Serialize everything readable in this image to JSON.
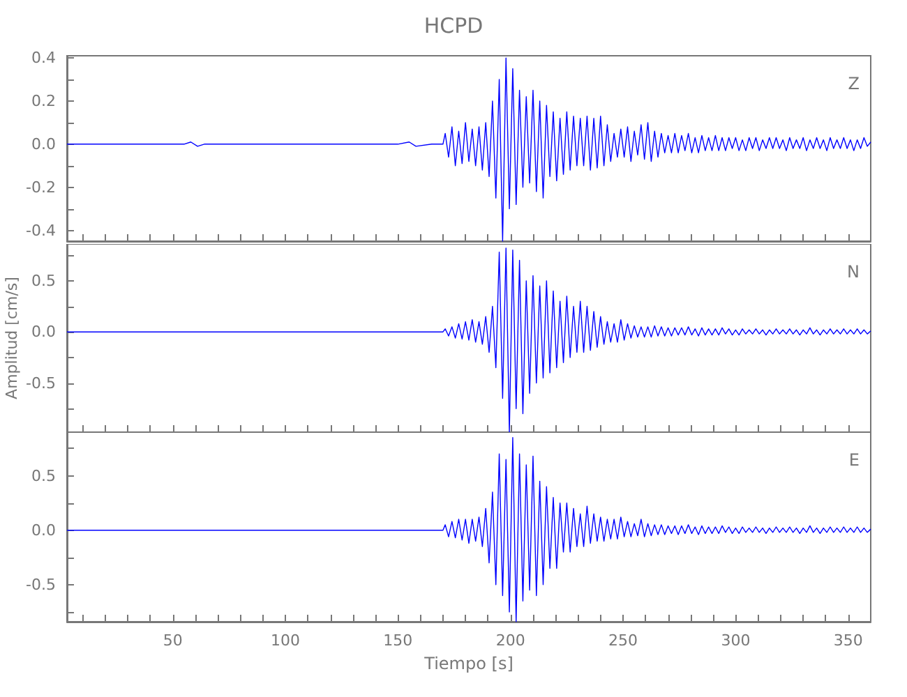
{
  "chart_data": [
    {
      "type": "line",
      "title": "HCPD",
      "annotations": [
        "Z"
      ],
      "color": "#0000ff",
      "tick_labels": "y",
      "xlim": [
        3,
        360
      ],
      "ylim": [
        -0.45,
        0.41
      ],
      "xticks": [
        {
          "value": 10,
          "label": null
        },
        {
          "value": 20,
          "label": null
        },
        {
          "value": 30,
          "label": null
        },
        {
          "value": 40,
          "label": null
        },
        {
          "value": 50,
          "label": null
        },
        {
          "value": 60,
          "label": null
        },
        {
          "value": 70,
          "label": null
        },
        {
          "value": 80,
          "label": null
        },
        {
          "value": 90,
          "label": null
        },
        {
          "value": 100,
          "label": null
        },
        {
          "value": 110,
          "label": null
        },
        {
          "value": 120,
          "label": null
        },
        {
          "value": 130,
          "label": null
        },
        {
          "value": 140,
          "label": null
        },
        {
          "value": 150,
          "label": null
        },
        {
          "value": 160,
          "label": null
        },
        {
          "value": 170,
          "label": null
        },
        {
          "value": 180,
          "label": null
        },
        {
          "value": 190,
          "label": null
        },
        {
          "value": 200,
          "label": null
        },
        {
          "value": 210,
          "label": null
        },
        {
          "value": 220,
          "label": null
        },
        {
          "value": 230,
          "label": null
        },
        {
          "value": 240,
          "label": null
        },
        {
          "value": 250,
          "label": null
        },
        {
          "value": 260,
          "label": null
        },
        {
          "value": 270,
          "label": null
        },
        {
          "value": 280,
          "label": null
        },
        {
          "value": 290,
          "label": null
        },
        {
          "value": 300,
          "label": null
        },
        {
          "value": 310,
          "label": null
        },
        {
          "value": 320,
          "label": null
        },
        {
          "value": 330,
          "label": null
        },
        {
          "value": 340,
          "label": null
        },
        {
          "value": 350,
          "label": null
        }
      ],
      "yticks": [
        {
          "value": -0.4,
          "label": "-0.4"
        },
        {
          "value": -0.3,
          "label": null
        },
        {
          "value": -0.2,
          "label": "-0.2"
        },
        {
          "value": -0.1,
          "label": null
        },
        {
          "value": 0,
          "label": "0.0"
        },
        {
          "value": 0.1,
          "label": null
        },
        {
          "value": 0.2,
          "label": "0.2"
        },
        {
          "value": 0.3,
          "label": null
        },
        {
          "value": 0.4,
          "label": "0.4"
        }
      ],
      "x": [
        3,
        30,
        55,
        58,
        61,
        64,
        90,
        120,
        150,
        155,
        158,
        165,
        170,
        171,
        172.5,
        174,
        175.5,
        177,
        178.5,
        180,
        181.5,
        183,
        184.5,
        186,
        187.5,
        189,
        190.5,
        192,
        193.5,
        195,
        196.5,
        198,
        199.5,
        201,
        202.5,
        204,
        205.5,
        207,
        208.5,
        210,
        211.5,
        213,
        214.5,
        216,
        217.5,
        219,
        220.5,
        222,
        223.5,
        225,
        226.5,
        228,
        229.5,
        231,
        232.5,
        234,
        235.5,
        237,
        238.5,
        240,
        241.5,
        243,
        244.5,
        246,
        247.5,
        249,
        250.5,
        252,
        253.5,
        255,
        256.5,
        258,
        259.5,
        261,
        262.5,
        264,
        265.5,
        267,
        268.5,
        270,
        271.5,
        273,
        274.5,
        276,
        277.5,
        279,
        280.5,
        282,
        283.5,
        285,
        286.5,
        288,
        289.5,
        291,
        292.5,
        294,
        295.5,
        297,
        298.5,
        300,
        301.5,
        303,
        304.5,
        306,
        307.5,
        309,
        310.5,
        312,
        313.5,
        315,
        316.5,
        318,
        319.5,
        321,
        322.5,
        324,
        325.5,
        327,
        328.5,
        330,
        331.5,
        333,
        334.5,
        336,
        337.5,
        339,
        340.5,
        342,
        343.5,
        345,
        346.5,
        348,
        349.5,
        351,
        352.5,
        354,
        355.5,
        357,
        358.5,
        360
      ],
      "values": [
        0,
        0,
        0,
        0.01,
        -0.01,
        0,
        0,
        0,
        0,
        0.01,
        -0.01,
        0,
        0,
        0.05,
        -0.06,
        0.08,
        -0.1,
        0.06,
        -0.09,
        0.1,
        -0.08,
        0.07,
        -0.1,
        0.08,
        -0.12,
        0.1,
        -0.15,
        0.2,
        -0.25,
        0.3,
        -0.45,
        0.4,
        -0.3,
        0.35,
        -0.28,
        0.25,
        -0.2,
        0.22,
        -0.18,
        0.25,
        -0.22,
        0.2,
        -0.25,
        0.18,
        -0.15,
        0.15,
        -0.17,
        0.12,
        -0.14,
        0.15,
        -0.12,
        0.13,
        -0.1,
        0.12,
        -0.1,
        0.13,
        -0.12,
        0.12,
        -0.11,
        0.13,
        -0.1,
        0.09,
        -0.08,
        0.05,
        -0.06,
        0.07,
        -0.06,
        0.08,
        -0.08,
        0.06,
        -0.05,
        0.09,
        -0.07,
        0.1,
        -0.08,
        0.06,
        -0.06,
        0.05,
        -0.04,
        0.04,
        -0.04,
        0.05,
        -0.04,
        0.04,
        -0.03,
        0.05,
        -0.04,
        0.03,
        -0.04,
        0.04,
        -0.03,
        0.03,
        -0.03,
        0.04,
        -0.03,
        0.03,
        -0.03,
        0.03,
        -0.02,
        0.03,
        -0.03,
        0.02,
        -0.03,
        0.03,
        -0.02,
        0.03,
        -0.03,
        0.02,
        -0.02,
        0.03,
        -0.02,
        0.03,
        -0.02,
        0.02,
        -0.03,
        0.03,
        -0.02,
        0.02,
        -0.02,
        0.03,
        -0.03,
        0.02,
        -0.02,
        0.03,
        -0.02,
        0.02,
        -0.03,
        0.03,
        -0.02,
        0.02,
        -0.02,
        0.03,
        -0.02,
        0.02,
        -0.03,
        0.02,
        -0.02,
        0.03,
        -0.01,
        0.01
      ]
    },
    {
      "type": "line",
      "annotations": [
        "N"
      ],
      "color": "#0000ff",
      "tick_labels": "y",
      "ylabel": "Amplitud [cm/s]",
      "xlim": [
        3,
        360
      ],
      "ylim": [
        -0.98,
        0.86
      ],
      "xticks": [
        {
          "value": 10,
          "label": null
        },
        {
          "value": 20,
          "label": null
        },
        {
          "value": 30,
          "label": null
        },
        {
          "value": 40,
          "label": null
        },
        {
          "value": 50,
          "label": null
        },
        {
          "value": 60,
          "label": null
        },
        {
          "value": 70,
          "label": null
        },
        {
          "value": 80,
          "label": null
        },
        {
          "value": 90,
          "label": null
        },
        {
          "value": 100,
          "label": null
        },
        {
          "value": 110,
          "label": null
        },
        {
          "value": 120,
          "label": null
        },
        {
          "value": 130,
          "label": null
        },
        {
          "value": 140,
          "label": null
        },
        {
          "value": 150,
          "label": null
        },
        {
          "value": 160,
          "label": null
        },
        {
          "value": 170,
          "label": null
        },
        {
          "value": 180,
          "label": null
        },
        {
          "value": 190,
          "label": null
        },
        {
          "value": 200,
          "label": null
        },
        {
          "value": 210,
          "label": null
        },
        {
          "value": 220,
          "label": null
        },
        {
          "value": 230,
          "label": null
        },
        {
          "value": 240,
          "label": null
        },
        {
          "value": 250,
          "label": null
        },
        {
          "value": 260,
          "label": null
        },
        {
          "value": 270,
          "label": null
        },
        {
          "value": 280,
          "label": null
        },
        {
          "value": 290,
          "label": null
        },
        {
          "value": 300,
          "label": null
        },
        {
          "value": 310,
          "label": null
        },
        {
          "value": 320,
          "label": null
        },
        {
          "value": 330,
          "label": null
        },
        {
          "value": 340,
          "label": null
        },
        {
          "value": 350,
          "label": null
        }
      ],
      "yticks": [
        {
          "value": -0.75,
          "label": null
        },
        {
          "value": -0.5,
          "label": "-0.5"
        },
        {
          "value": -0.25,
          "label": null
        },
        {
          "value": 0,
          "label": "0.0"
        },
        {
          "value": 0.25,
          "label": null
        },
        {
          "value": 0.5,
          "label": "0.5"
        },
        {
          "value": 0.75,
          "label": null
        }
      ],
      "x": [
        3,
        30,
        55,
        58,
        61,
        64,
        90,
        120,
        150,
        155,
        158,
        165,
        170,
        171,
        172.5,
        174,
        175.5,
        177,
        178.5,
        180,
        181.5,
        183,
        184.5,
        186,
        187.5,
        189,
        190.5,
        192,
        193.5,
        195,
        196.5,
        198,
        199.5,
        201,
        202.5,
        204,
        205.5,
        207,
        208.5,
        210,
        211.5,
        213,
        214.5,
        216,
        217.5,
        219,
        220.5,
        222,
        223.5,
        225,
        226.5,
        228,
        229.5,
        231,
        232.5,
        234,
        235.5,
        237,
        238.5,
        240,
        241.5,
        243,
        244.5,
        246,
        247.5,
        249,
        250.5,
        252,
        253.5,
        255,
        256.5,
        258,
        259.5,
        261,
        262.5,
        264,
        265.5,
        267,
        268.5,
        270,
        271.5,
        273,
        274.5,
        276,
        277.5,
        279,
        280.5,
        282,
        283.5,
        285,
        286.5,
        288,
        289.5,
        291,
        292.5,
        294,
        295.5,
        297,
        298.5,
        300,
        301.5,
        303,
        304.5,
        306,
        307.5,
        309,
        310.5,
        312,
        313.5,
        315,
        316.5,
        318,
        319.5,
        321,
        322.5,
        324,
        325.5,
        327,
        328.5,
        330,
        331.5,
        333,
        334.5,
        336,
        337.5,
        339,
        340.5,
        342,
        343.5,
        345,
        346.5,
        348,
        349.5,
        351,
        352.5,
        354,
        355.5,
        357,
        358.5,
        360
      ],
      "values": [
        0,
        0,
        0,
        0,
        0,
        0,
        0,
        0,
        0,
        0,
        0,
        0,
        0,
        0.03,
        -0.04,
        0.05,
        -0.06,
        0.08,
        -0.07,
        0.1,
        -0.08,
        0.12,
        -0.1,
        0.1,
        -0.12,
        0.15,
        -0.2,
        0.25,
        -0.35,
        0.78,
        -0.65,
        0.82,
        -0.98,
        0.8,
        -0.75,
        0.7,
        -0.8,
        0.5,
        -0.6,
        0.55,
        -0.5,
        0.45,
        -0.45,
        0.5,
        -0.4,
        0.4,
        -0.35,
        0.3,
        -0.3,
        0.35,
        -0.25,
        0.25,
        -0.2,
        0.3,
        -0.2,
        0.25,
        -0.18,
        0.2,
        -0.15,
        0.15,
        -0.12,
        0.1,
        -0.1,
        0.08,
        -0.1,
        0.12,
        -0.08,
        0.08,
        -0.06,
        0.06,
        -0.05,
        0.05,
        -0.05,
        0.05,
        -0.05,
        0.06,
        -0.04,
        0.05,
        -0.04,
        0.04,
        -0.04,
        0.04,
        -0.03,
        0.04,
        -0.03,
        0.05,
        -0.03,
        0.03,
        -0.04,
        0.04,
        -0.03,
        0.03,
        -0.03,
        0.03,
        -0.03,
        0.04,
        -0.02,
        0.03,
        -0.03,
        0.02,
        -0.03,
        0.03,
        -0.02,
        0.02,
        -0.02,
        0.03,
        -0.02,
        0.02,
        -0.03,
        0.02,
        -0.02,
        0.03,
        -0.02,
        0.02,
        -0.02,
        0.03,
        -0.02,
        0.02,
        -0.03,
        0.02,
        -0.02,
        0.04,
        -0.02,
        0.02,
        -0.03,
        0.02,
        -0.02,
        0.03,
        -0.02,
        0.02,
        -0.02,
        0.03,
        -0.02,
        0.02,
        -0.02,
        0.03,
        -0.02,
        0.02,
        -0.02,
        0.01
      ]
    },
    {
      "type": "line",
      "annotations": [
        "E"
      ],
      "color": "#0000ff",
      "xlabel": "Tiempo [s]",
      "xlim": [
        3,
        360
      ],
      "ylim": [
        -0.84,
        0.9
      ],
      "xticks": [
        {
          "value": 10,
          "label": null
        },
        {
          "value": 20,
          "label": null
        },
        {
          "value": 30,
          "label": null
        },
        {
          "value": 40,
          "label": null
        },
        50,
        {
          "value": 60,
          "label": null
        },
        {
          "value": 70,
          "label": null
        },
        {
          "value": 80,
          "label": null
        },
        {
          "value": 90,
          "label": null
        },
        100,
        {
          "value": 110,
          "label": null
        },
        {
          "value": 120,
          "label": null
        },
        {
          "value": 130,
          "label": null
        },
        {
          "value": 140,
          "label": null
        },
        150,
        {
          "value": 160,
          "label": null
        },
        {
          "value": 170,
          "label": null
        },
        {
          "value": 180,
          "label": null
        },
        {
          "value": 190,
          "label": null
        },
        200,
        {
          "value": 210,
          "label": null
        },
        {
          "value": 220,
          "label": null
        },
        {
          "value": 230,
          "label": null
        },
        {
          "value": 240,
          "label": null
        },
        250,
        {
          "value": 260,
          "label": null
        },
        {
          "value": 270,
          "label": null
        },
        {
          "value": 280,
          "label": null
        },
        {
          "value": 290,
          "label": null
        },
        300,
        {
          "value": 310,
          "label": null
        },
        {
          "value": 320,
          "label": null
        },
        {
          "value": 330,
          "label": null
        },
        {
          "value": 340,
          "label": null
        },
        350
      ],
      "yticks": [
        {
          "value": -0.75,
          "label": null
        },
        {
          "value": -0.5,
          "label": "-0.5"
        },
        {
          "value": -0.25,
          "label": null
        },
        {
          "value": 0,
          "label": "0.0"
        },
        {
          "value": 0.25,
          "label": null
        },
        {
          "value": 0.5,
          "label": "0.5"
        },
        {
          "value": 0.75,
          "label": null
        }
      ],
      "x": [
        3,
        30,
        55,
        58,
        61,
        64,
        90,
        120,
        150,
        155,
        158,
        165,
        170,
        171,
        172.5,
        174,
        175.5,
        177,
        178.5,
        180,
        181.5,
        183,
        184.5,
        186,
        187.5,
        189,
        190.5,
        192,
        193.5,
        195,
        196.5,
        198,
        199.5,
        201,
        202.5,
        204,
        205.5,
        207,
        208.5,
        210,
        211.5,
        213,
        214.5,
        216,
        217.5,
        219,
        220.5,
        222,
        223.5,
        225,
        226.5,
        228,
        229.5,
        231,
        232.5,
        234,
        235.5,
        237,
        238.5,
        240,
        241.5,
        243,
        244.5,
        246,
        247.5,
        249,
        250.5,
        252,
        253.5,
        255,
        256.5,
        258,
        259.5,
        261,
        262.5,
        264,
        265.5,
        267,
        268.5,
        270,
        271.5,
        273,
        274.5,
        276,
        277.5,
        279,
        280.5,
        282,
        283.5,
        285,
        286.5,
        288,
        289.5,
        291,
        292.5,
        294,
        295.5,
        297,
        298.5,
        300,
        301.5,
        303,
        304.5,
        306,
        307.5,
        309,
        310.5,
        312,
        313.5,
        315,
        316.5,
        318,
        319.5,
        321,
        322.5,
        324,
        325.5,
        327,
        328.5,
        330,
        331.5,
        333,
        334.5,
        336,
        337.5,
        339,
        340.5,
        342,
        343.5,
        345,
        346.5,
        348,
        349.5,
        351,
        352.5,
        354,
        355.5,
        357,
        358.5,
        360
      ],
      "values": [
        0,
        0,
        0,
        0,
        0,
        0,
        0,
        0,
        0,
        0,
        0,
        0,
        0,
        0.05,
        -0.06,
        0.08,
        -0.07,
        0.1,
        -0.09,
        0.1,
        -0.12,
        0.1,
        -0.1,
        0.12,
        -0.15,
        0.2,
        -0.3,
        0.35,
        -0.5,
        0.7,
        -0.6,
        0.65,
        -0.75,
        0.85,
        -0.84,
        0.7,
        -0.65,
        0.6,
        -0.55,
        0.68,
        -0.6,
        0.45,
        -0.5,
        0.4,
        -0.35,
        0.3,
        -0.35,
        0.25,
        -0.2,
        0.25,
        -0.2,
        0.2,
        -0.15,
        0.15,
        -0.15,
        0.22,
        -0.12,
        0.15,
        -0.1,
        0.12,
        -0.1,
        0.1,
        -0.08,
        0.1,
        -0.08,
        0.12,
        -0.06,
        0.08,
        -0.06,
        0.06,
        -0.05,
        0.1,
        -0.06,
        0.06,
        -0.05,
        0.05,
        -0.04,
        0.05,
        -0.04,
        0.04,
        -0.03,
        0.04,
        -0.04,
        0.04,
        -0.03,
        0.05,
        -0.03,
        0.03,
        -0.04,
        0.04,
        -0.03,
        0.03,
        -0.03,
        0.03,
        -0.03,
        0.04,
        -0.02,
        0.03,
        -0.03,
        0.02,
        -0.03,
        0.03,
        -0.02,
        0.02,
        -0.02,
        0.03,
        -0.02,
        0.02,
        -0.03,
        0.02,
        -0.02,
        0.03,
        -0.02,
        0.02,
        -0.02,
        0.03,
        -0.02,
        0.02,
        -0.03,
        0.02,
        -0.02,
        0.04,
        -0.02,
        0.02,
        -0.03,
        0.02,
        -0.02,
        0.03,
        -0.02,
        0.02,
        -0.02,
        0.03,
        -0.02,
        0.02,
        -0.02,
        0.03,
        -0.02,
        0.02,
        -0.02,
        0.01
      ]
    }
  ]
}
